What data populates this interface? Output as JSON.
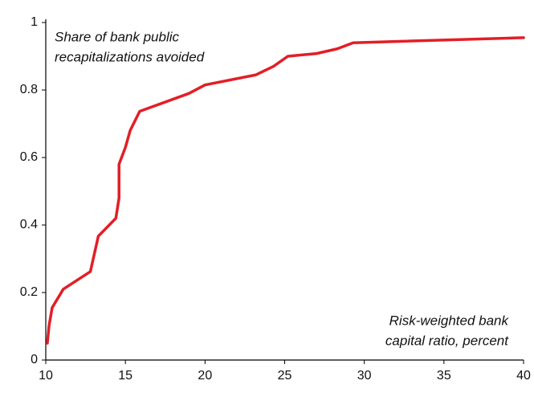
{
  "chart_data": {
    "type": "line",
    "annotations": [
      [
        "Share of bank public",
        "recapitalizations avoided"
      ],
      [
        "Risk-weighted bank",
        "capital ratio, percent"
      ]
    ],
    "series": [
      {
        "color": "#e31e26",
        "x": [
          10.1,
          10.2,
          10.4,
          11.1,
          12.8,
          13.3,
          14.4,
          14.6,
          14.6,
          15.0,
          15.3,
          15.9,
          19.0,
          20.0,
          23.2,
          24.3,
          25.2,
          27.0,
          28.3,
          29.3,
          40.0
        ],
        "values": [
          0.05,
          0.1,
          0.155,
          0.21,
          0.262,
          0.367,
          0.42,
          0.48,
          0.58,
          0.63,
          0.68,
          0.737,
          0.79,
          0.815,
          0.845,
          0.87,
          0.9,
          0.908,
          0.922,
          0.94,
          0.955
        ]
      }
    ],
    "xlim": [
      10,
      40
    ],
    "xticks": [
      10,
      15,
      20,
      25,
      30,
      35,
      40
    ],
    "ylim": [
      0,
      1
    ],
    "yticks": [
      0,
      0.2,
      0.4,
      0.6,
      0.8,
      1
    ],
    "grid": false
  }
}
